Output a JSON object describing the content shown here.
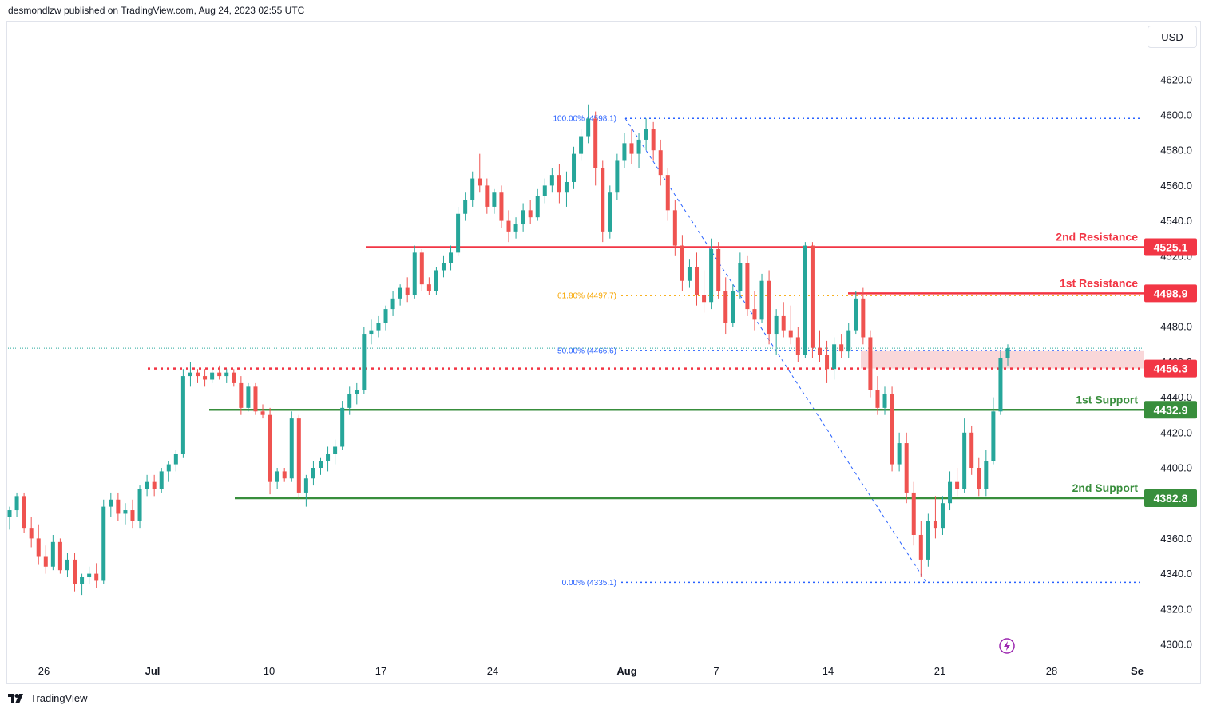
{
  "header": {
    "published": "desmondlzw published on TradingView.com, Aug 24, 2023 02:55 UTC"
  },
  "currency_button": "USD",
  "footer": {
    "logo_text": "TradingView",
    "logo_icon": "tradingview-logo-icon"
  },
  "lightning_icon": "lightning-icon",
  "colors": {
    "up": "#26a69a",
    "down": "#ef5350",
    "resistance": "#f23645",
    "support": "#388e3c",
    "fib": "#2962ff",
    "fib618": "#f7a600",
    "zone": "#f8cdd0"
  },
  "chart_data": {
    "type": "candlestick",
    "x_ticks": [
      "26",
      "Jul",
      "10",
      "17",
      "24",
      "Aug",
      "7",
      "14",
      "21",
      "28",
      "Se"
    ],
    "y_ticks": [
      "4620.0",
      "4600.0",
      "4580.0",
      "4560.0",
      "4540.0",
      "4520.0",
      "4480.0",
      "4460.0",
      "4440.0",
      "4420.0",
      "4400.0",
      "4380.0",
      "4360.0",
      "4340.0",
      "4320.0",
      "4300.0"
    ],
    "ylim": [
      4297,
      4635
    ],
    "levels": [
      {
        "name": "2nd Resistance",
        "value": 4525.1,
        "label": "4525.1",
        "kind": "resistance"
      },
      {
        "name": "1st Resistance",
        "value": 4498.9,
        "label": "4498.9",
        "kind": "resistance"
      },
      {
        "name": "",
        "value": 4456.3,
        "label": "4456.3",
        "kind": "pivot"
      },
      {
        "name": "1st Support",
        "value": 4432.9,
        "label": "4432.9",
        "kind": "support"
      },
      {
        "name": "2nd Support",
        "value": 4382.8,
        "label": "4382.8",
        "kind": "support"
      }
    ],
    "fibonacci": [
      {
        "label": "100.00% (4598.1)",
        "value": 4598.1
      },
      {
        "label": "61.80% (4497.7)",
        "value": 4497.7
      },
      {
        "label": "50.00% (4466.6)",
        "value": 4466.6
      },
      {
        "label": "0.00% (4335.1)",
        "value": 4335.1
      }
    ],
    "last_price": 4467.8,
    "zone": [
      4456.3,
      4466.6
    ],
    "candles": [
      [
        4372,
        4378,
        4365,
        4376
      ],
      [
        4376,
        4386,
        4372,
        4384
      ],
      [
        4384,
        4386,
        4363,
        4366
      ],
      [
        4366,
        4372,
        4355,
        4360
      ],
      [
        4360,
        4368,
        4345,
        4350
      ],
      [
        4350,
        4356,
        4340,
        4344
      ],
      [
        4344,
        4362,
        4342,
        4358
      ],
      [
        4358,
        4360,
        4340,
        4342
      ],
      [
        4342,
        4352,
        4338,
        4348
      ],
      [
        4348,
        4352,
        4330,
        4334
      ],
      [
        4334,
        4340,
        4328,
        4338
      ],
      [
        4338,
        4344,
        4334,
        4340
      ],
      [
        4340,
        4346,
        4332,
        4336
      ],
      [
        4336,
        4382,
        4334,
        4378
      ],
      [
        4378,
        4386,
        4372,
        4382
      ],
      [
        4382,
        4386,
        4370,
        4374
      ],
      [
        4374,
        4380,
        4368,
        4376
      ],
      [
        4376,
        4382,
        4366,
        4370
      ],
      [
        4370,
        4390,
        4366,
        4388
      ],
      [
        4388,
        4396,
        4384,
        4392
      ],
      [
        4392,
        4396,
        4384,
        4388
      ],
      [
        4388,
        4400,
        4386,
        4398
      ],
      [
        4398,
        4404,
        4392,
        4402
      ],
      [
        4402,
        4410,
        4398,
        4408
      ],
      [
        4408,
        4456,
        4406,
        4452
      ],
      [
        4452,
        4460,
        4446,
        4454
      ],
      [
        4454,
        4456,
        4448,
        4452
      ],
      [
        4452,
        4456,
        4446,
        4450
      ],
      [
        4450,
        4456,
        4448,
        4454
      ],
      [
        4454,
        4458,
        4450,
        4452
      ],
      [
        4452,
        4456,
        4448,
        4454
      ],
      [
        4454,
        4456,
        4446,
        4448
      ],
      [
        4448,
        4452,
        4430,
        4434
      ],
      [
        4434,
        4448,
        4432,
        4446
      ],
      [
        4446,
        4448,
        4430,
        4432
      ],
      [
        4432,
        4436,
        4428,
        4430
      ],
      [
        4430,
        4434,
        4385,
        4392
      ],
      [
        4392,
        4400,
        4388,
        4398
      ],
      [
        4398,
        4400,
        4392,
        4394
      ],
      [
        4394,
        4432,
        4392,
        4428
      ],
      [
        4428,
        4430,
        4382,
        4386
      ],
      [
        4386,
        4396,
        4378,
        4394
      ],
      [
        4394,
        4404,
        4390,
        4400
      ],
      [
        4400,
        4406,
        4396,
        4404
      ],
      [
        4404,
        4412,
        4398,
        4408
      ],
      [
        4408,
        4416,
        4402,
        4412
      ],
      [
        4412,
        4438,
        4410,
        4434
      ],
      [
        4434,
        4446,
        4430,
        4442
      ],
      [
        4442,
        4448,
        4436,
        4444
      ],
      [
        4444,
        4480,
        4442,
        4476
      ],
      [
        4476,
        4484,
        4470,
        4478
      ],
      [
        4478,
        4486,
        4474,
        4482
      ],
      [
        4482,
        4492,
        4478,
        4490
      ],
      [
        4490,
        4500,
        4486,
        4496
      ],
      [
        4496,
        4504,
        4492,
        4502
      ],
      [
        4502,
        4508,
        4494,
        4498
      ],
      [
        4498,
        4526,
        4496,
        4522
      ],
      [
        4522,
        4524,
        4500,
        4504
      ],
      [
        4504,
        4508,
        4498,
        4500
      ],
      [
        4500,
        4514,
        4498,
        4512
      ],
      [
        4512,
        4520,
        4508,
        4516
      ],
      [
        4516,
        4526,
        4512,
        4522
      ],
      [
        4522,
        4548,
        4520,
        4544
      ],
      [
        4544,
        4556,
        4540,
        4552
      ],
      [
        4552,
        4568,
        4548,
        4564
      ],
      [
        4564,
        4578,
        4556,
        4560
      ],
      [
        4560,
        4564,
        4544,
        4548
      ],
      [
        4548,
        4558,
        4544,
        4556
      ],
      [
        4556,
        4560,
        4536,
        4540
      ],
      [
        4540,
        4546,
        4528,
        4534
      ],
      [
        4534,
        4542,
        4530,
        4538
      ],
      [
        4538,
        4550,
        4534,
        4546
      ],
      [
        4546,
        4552,
        4538,
        4542
      ],
      [
        4542,
        4558,
        4540,
        4554
      ],
      [
        4554,
        4564,
        4550,
        4560
      ],
      [
        4560,
        4570,
        4556,
        4566
      ],
      [
        4566,
        4572,
        4550,
        4556
      ],
      [
        4556,
        4568,
        4548,
        4562
      ],
      [
        4562,
        4582,
        4558,
        4578
      ],
      [
        4578,
        4592,
        4574,
        4588
      ],
      [
        4588,
        4606,
        4584,
        4598
      ],
      [
        4598,
        4602,
        4560,
        4570
      ],
      [
        4570,
        4574,
        4528,
        4534
      ],
      [
        4534,
        4560,
        4530,
        4556
      ],
      [
        4556,
        4578,
        4552,
        4574
      ],
      [
        4574,
        4590,
        4570,
        4584
      ],
      [
        4584,
        4592,
        4572,
        4578
      ],
      [
        4578,
        4590,
        4570,
        4586
      ],
      [
        4586,
        4598,
        4580,
        4592
      ],
      [
        4592,
        4596,
        4574,
        4580
      ],
      [
        4580,
        4586,
        4560,
        4566
      ],
      [
        4566,
        4570,
        4540,
        4546
      ],
      [
        4546,
        4552,
        4520,
        4526
      ],
      [
        4526,
        4532,
        4500,
        4506
      ],
      [
        4506,
        4518,
        4502,
        4514
      ],
      [
        4514,
        4522,
        4492,
        4498
      ],
      [
        4498,
        4512,
        4488,
        4494
      ],
      [
        4494,
        4530,
        4490,
        4524
      ],
      [
        4524,
        4528,
        4496,
        4500
      ],
      [
        4500,
        4508,
        4476,
        4482
      ],
      [
        4482,
        4504,
        4480,
        4500
      ],
      [
        4500,
        4522,
        4496,
        4516
      ],
      [
        4516,
        4520,
        4486,
        4490
      ],
      [
        4490,
        4500,
        4478,
        4484
      ],
      [
        4484,
        4510,
        4482,
        4506
      ],
      [
        4506,
        4512,
        4470,
        4476
      ],
      [
        4476,
        4490,
        4464,
        4486
      ],
      [
        4486,
        4494,
        4474,
        4478
      ],
      [
        4478,
        4492,
        4470,
        4474
      ],
      [
        4474,
        4480,
        4460,
        4464
      ],
      [
        4464,
        4528,
        4462,
        4526
      ],
      [
        4526,
        4528,
        4462,
        4468
      ],
      [
        4468,
        4478,
        4460,
        4464
      ],
      [
        4464,
        4472,
        4448,
        4456
      ],
      [
        4456,
        4474,
        4450,
        4470
      ],
      [
        4470,
        4476,
        4462,
        4466
      ],
      [
        4466,
        4482,
        4462,
        4478
      ],
      [
        4478,
        4500,
        4476,
        4496
      ],
      [
        4496,
        4502,
        4470,
        4474
      ],
      [
        4474,
        4478,
        4440,
        4444
      ],
      [
        4444,
        4452,
        4430,
        4434
      ],
      [
        4434,
        4446,
        4430,
        4442
      ],
      [
        4442,
        4446,
        4398,
        4402
      ],
      [
        4402,
        4420,
        4398,
        4414
      ],
      [
        4414,
        4420,
        4380,
        4386
      ],
      [
        4386,
        4392,
        4356,
        4362
      ],
      [
        4362,
        4370,
        4338,
        4348
      ],
      [
        4348,
        4374,
        4344,
        4370
      ],
      [
        4370,
        4384,
        4360,
        4366
      ],
      [
        4366,
        4384,
        4362,
        4380
      ],
      [
        4380,
        4398,
        4376,
        4392
      ],
      [
        4392,
        4400,
        4384,
        4388
      ],
      [
        4388,
        4428,
        4386,
        4420
      ],
      [
        4420,
        4424,
        4396,
        4400
      ],
      [
        4400,
        4406,
        4384,
        4388
      ],
      [
        4388,
        4410,
        4384,
        4404
      ],
      [
        4404,
        4440,
        4402,
        4432
      ],
      [
        4432,
        4466,
        4430,
        4462
      ],
      [
        4462,
        4470,
        4458,
        4467.8
      ]
    ]
  }
}
